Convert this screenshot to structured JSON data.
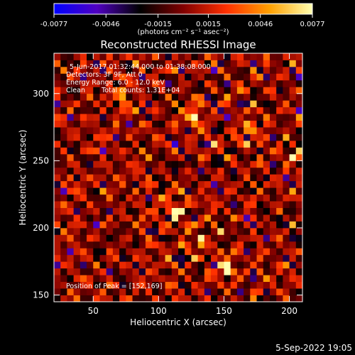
{
  "chart_data": {
    "type": "heatmap",
    "title": "Reconstructed RHESSI Image",
    "xlabel": "Heliocentric X (arcsec)",
    "ylabel": "Heliocentric Y (arcsec)",
    "xlim": [
      20,
      210
    ],
    "ylim": [
      145,
      330
    ],
    "x_ticks": [
      50,
      100,
      150,
      200
    ],
    "y_ticks": [
      150,
      200,
      250,
      300
    ],
    "colorbar": {
      "range": [
        -0.0077,
        0.0077
      ],
      "tick_values": [
        -0.0077,
        -0.0046,
        -0.0015,
        0.0015,
        0.0046,
        0.0077
      ],
      "tick_labels": [
        "-0.0077",
        "-0.0046",
        "-0.0015",
        "0.0015",
        "0.0046",
        "0.0077"
      ],
      "unit_label": "(photons cm⁻² s⁻¹ asec⁻²)",
      "colormap": [
        "#0000ff",
        "#5000c0",
        "#000000",
        "#800000",
        "#ff3000",
        "#ffa000",
        "#ffffb0"
      ]
    },
    "annotations": [
      "5-Jun-2017 01:32:44.000 to 01:38:08.000",
      "Detectors: 3F 9F, Att 0",
      "Energy Range: 6.0 - 12.0 keV",
      "Clean",
      "Total counts: 1.31E+04"
    ],
    "peak_label": "Position of Peak = [152,169]",
    "peak": {
      "x": 152,
      "y": 169
    },
    "bright_sources": [
      {
        "x": 152,
        "y": 169,
        "value": 0.0077
      },
      {
        "x": 127,
        "y": 282,
        "value": 0.0075
      },
      {
        "x": 113,
        "y": 212,
        "value": 0.0066
      },
      {
        "x": 73,
        "y": 299,
        "value": 0.0064
      },
      {
        "x": 205,
        "y": 254,
        "value": 0.006
      },
      {
        "x": 133,
        "y": 191,
        "value": 0.0058
      },
      {
        "x": 170,
        "y": 275,
        "value": 0.0055
      }
    ]
  },
  "footer_date": "5-Sep-2022 19:05"
}
